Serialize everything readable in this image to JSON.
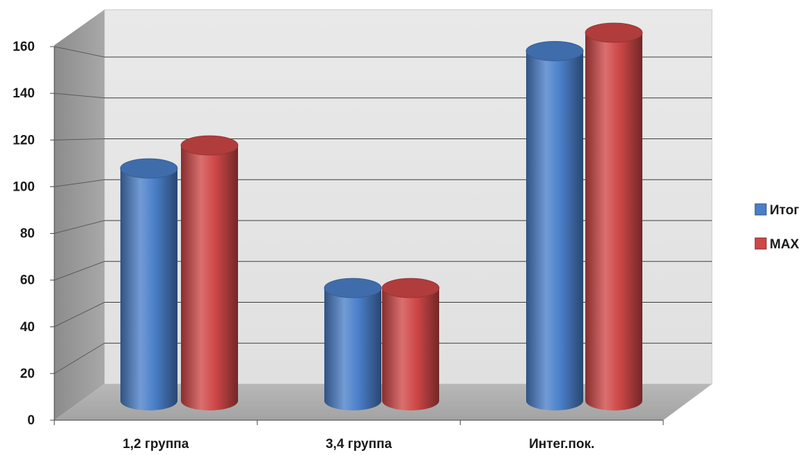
{
  "chart_data": {
    "type": "bar",
    "subtype": "3d-cylinder-clustered",
    "categories": [
      "1,2 группа",
      "3,4 группа",
      "Интег.пок."
    ],
    "series": [
      {
        "name": "Итог",
        "values": [
          101,
          49,
          152
        ],
        "color": "#4a7fc9"
      },
      {
        "name": "MAX",
        "values": [
          111,
          49,
          160
        ],
        "color": "#cf4747"
      }
    ],
    "ylim": [
      0,
      160
    ],
    "yticks": [
      0,
      20,
      40,
      60,
      80,
      100,
      120,
      140,
      160
    ],
    "grid": true,
    "legend": "right",
    "title": "",
    "xlabel": "",
    "ylabel": ""
  }
}
